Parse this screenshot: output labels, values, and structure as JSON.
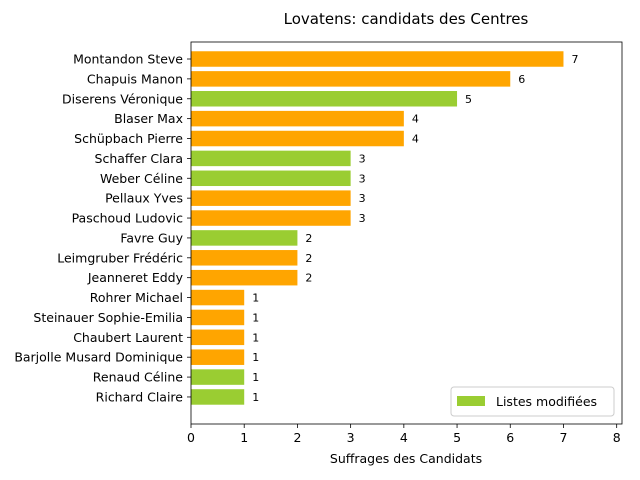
{
  "chart_data": {
    "type": "bar",
    "orientation": "horizontal",
    "title": "Lovatens: candidats des Centres",
    "xlabel": "Suffrages des Candidats",
    "ylabel": "",
    "xlim": [
      0,
      8.1
    ],
    "xticks": [
      0,
      1,
      2,
      3,
      4,
      5,
      6,
      7,
      8
    ],
    "grid": false,
    "legend_position": "bottom-right",
    "colors": {
      "default": "#ffa500",
      "modified": "#9acd32"
    },
    "legend": [
      {
        "label": "Listes modifiées",
        "color": "#9acd32"
      }
    ],
    "bars": [
      {
        "label": "Montandon Steve",
        "value": 7,
        "modified": false
      },
      {
        "label": "Chapuis Manon",
        "value": 6,
        "modified": false
      },
      {
        "label": "Diserens Véronique",
        "value": 5,
        "modified": true
      },
      {
        "label": "Blaser Max",
        "value": 4,
        "modified": false
      },
      {
        "label": "Schüpbach Pierre",
        "value": 4,
        "modified": false
      },
      {
        "label": "Schaffer Clara",
        "value": 3,
        "modified": true
      },
      {
        "label": "Weber Céline",
        "value": 3,
        "modified": true
      },
      {
        "label": "Pellaux Yves",
        "value": 3,
        "modified": false
      },
      {
        "label": "Paschoud Ludovic",
        "value": 3,
        "modified": false
      },
      {
        "label": "Favre Guy",
        "value": 2,
        "modified": true
      },
      {
        "label": "Leimgruber Frédéric",
        "value": 2,
        "modified": false
      },
      {
        "label": "Jeanneret Eddy",
        "value": 2,
        "modified": false
      },
      {
        "label": "Rohrer Michael",
        "value": 1,
        "modified": false
      },
      {
        "label": "Steinauer Sophie-Emilia",
        "value": 1,
        "modified": false
      },
      {
        "label": "Chaubert Laurent",
        "value": 1,
        "modified": false
      },
      {
        "label": "Barjolle Musard Dominique",
        "value": 1,
        "modified": false
      },
      {
        "label": "Renaud Céline",
        "value": 1,
        "modified": true
      },
      {
        "label": "Richard Claire",
        "value": 1,
        "modified": true
      }
    ]
  }
}
